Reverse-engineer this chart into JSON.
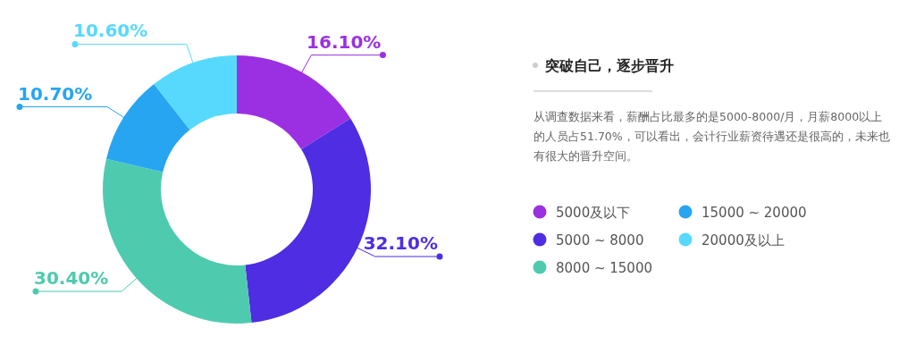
{
  "chart_data": {
    "type": "donut",
    "title": "突破自己，逐步晋升",
    "annotations": [
      "从调查数据来看，薪酬占比最多的是5000-8000/月，月薪8000以上的人员占51.70%，可以看出，会计行业薪资待遇还是很高的，未来也有很大的晋升空间。"
    ],
    "categories": [
      "5000及以下",
      "5000 ~ 8000",
      "8000 ~ 15000",
      "15000 ~ 20000",
      "20000及以上"
    ],
    "values": [
      16.1,
      32.1,
      30.4,
      10.7,
      10.6
    ],
    "value_labels": [
      "16.10%",
      "32.10%",
      "30.40%",
      "10.70%",
      "10.60%"
    ],
    "colors": [
      "#9b30e2",
      "#4e2de3",
      "#4ecbae",
      "#27a5f1",
      "#57d9fd"
    ],
    "legend": "right"
  }
}
